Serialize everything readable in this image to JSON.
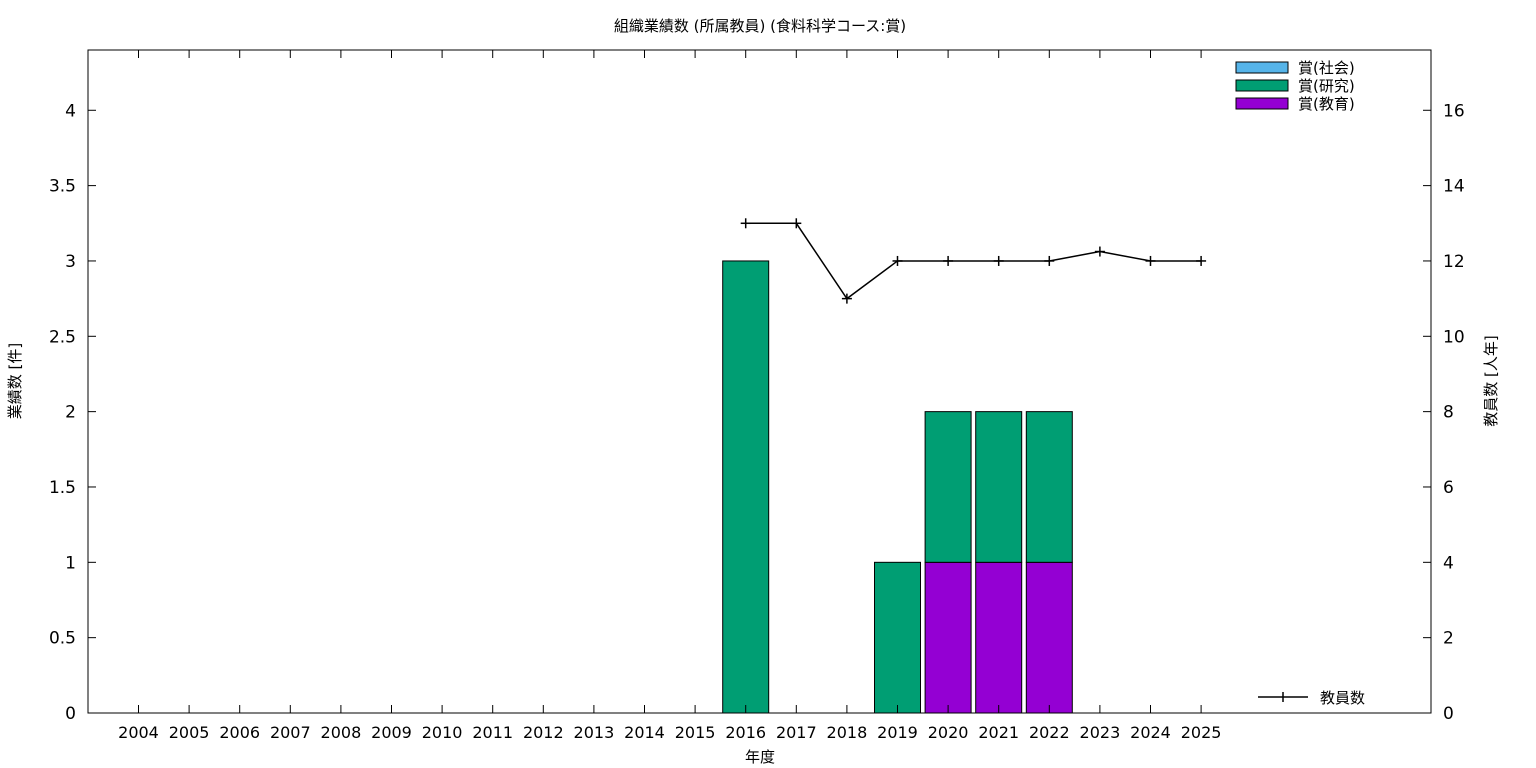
{
  "chart_data": {
    "type": "bar",
    "title": "組織業績数 (所属教員) (食料科学コース:賞)",
    "xlabel": "年度",
    "ylabel": "業績数 [件]",
    "y2label": "教員数 [人年]",
    "stacked": true,
    "categories": [
      "2004",
      "2005",
      "2006",
      "2007",
      "2008",
      "2009",
      "2010",
      "2011",
      "2012",
      "2013",
      "2014",
      "2015",
      "2016",
      "2017",
      "2018",
      "2019",
      "2020",
      "2021",
      "2022",
      "2023",
      "2024",
      "2025"
    ],
    "ylim": [
      0,
      4.4
    ],
    "yticks": [
      "0",
      "0.5",
      "1",
      "1.5",
      "2",
      "2.5",
      "3",
      "3.5",
      "4"
    ],
    "y2lim": [
      0,
      17.6
    ],
    "y2ticks": [
      "0",
      "2",
      "4",
      "6",
      "8",
      "10",
      "12",
      "14",
      "16"
    ],
    "legend_position": "top-right",
    "series": [
      {
        "name": "賞(社会)",
        "color": "#56b4e9",
        "values": [
          0,
          0,
          0,
          0,
          0,
          0,
          0,
          0,
          0,
          0,
          0,
          0,
          0,
          0,
          0,
          0,
          0,
          0,
          0,
          0,
          0,
          0
        ]
      },
      {
        "name": "賞(研究)",
        "color": "#009e73",
        "values": [
          0,
          0,
          0,
          0,
          0,
          0,
          0,
          0,
          0,
          0,
          0,
          0,
          3,
          0,
          0,
          1,
          1,
          1,
          1,
          0,
          0,
          0
        ]
      },
      {
        "name": "賞(教育)",
        "color": "#9400d3",
        "values": [
          0,
          0,
          0,
          0,
          0,
          0,
          0,
          0,
          0,
          0,
          0,
          0,
          0,
          0,
          0,
          0,
          1,
          1,
          1,
          0,
          0,
          0
        ]
      }
    ],
    "line_series": {
      "name": "教員数",
      "color": "#000000",
      "axis": "right",
      "x": [
        "2016",
        "2017",
        "2018",
        "2019",
        "2020",
        "2021",
        "2022",
        "2023",
        "2024",
        "2025"
      ],
      "values": [
        13,
        13,
        11,
        12,
        12,
        12,
        12,
        12.25,
        12,
        12
      ]
    }
  }
}
